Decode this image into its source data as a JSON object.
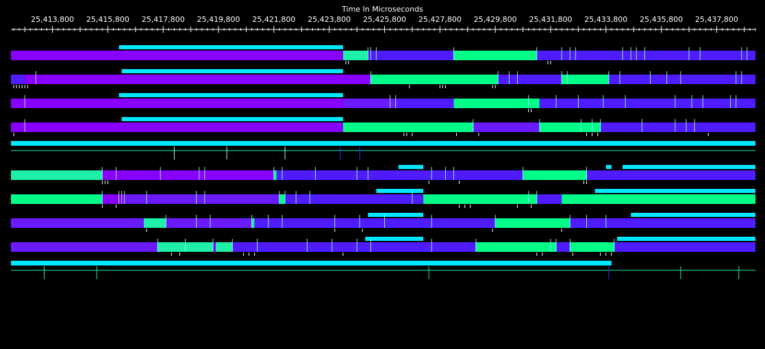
{
  "title": "Time In Microseconds",
  "axis": {
    "start": 25412300,
    "end": 25439200,
    "labels": [
      "25,413,800",
      "25,415,800",
      "25,417,800",
      "25,419,800",
      "25,421,800",
      "25,423,800",
      "25,425,800",
      "25,427,800",
      "25,429,800",
      "25,431,800",
      "25,433,800",
      "25,435,800",
      "25,437,800"
    ],
    "label_values": [
      25413800,
      25415800,
      25417800,
      25419800,
      25421800,
      25423800,
      25425800,
      25427800,
      25429800,
      25431800,
      25433800,
      25435800,
      25437800
    ]
  },
  "colors": {
    "background": "#000000",
    "purple": "#8800ff",
    "violet": "#6a1aff",
    "indigo": "#4f1cff",
    "teal": "#1ef0a8",
    "green": "#00ff88",
    "cyan": "#00e8ff",
    "idle_line": "#1ef0a8",
    "marker_light": "#9ffff0",
    "marker_white": "#ffffff"
  },
  "processors": [
    {
      "type": "bar",
      "segments": [
        {
          "start": 25412300,
          "end": 25424300,
          "color": "purple"
        },
        {
          "start": 25424300,
          "end": 25425200,
          "color": "teal"
        },
        {
          "start": 25425200,
          "end": 25428300,
          "color": "indigo"
        },
        {
          "start": 25428300,
          "end": 25431300,
          "color": "green"
        },
        {
          "start": 25431300,
          "end": 25434400,
          "color": "indigo"
        },
        {
          "start": 25434400,
          "end": 25439200,
          "color": "indigo"
        }
      ],
      "overhead": [
        {
          "start": 25416200,
          "end": 25424300
        }
      ],
      "events": [
        25425200,
        25425300,
        25425500,
        25428300,
        25431300,
        25432200,
        25432500,
        25432700,
        25434400,
        25434700,
        25434900,
        25435200,
        25436800,
        25437200,
        25438700,
        25438900
      ],
      "marks": [
        25424400,
        25424500,
        25431700,
        25431800
      ]
    },
    {
      "type": "bar",
      "segments": [
        {
          "start": 25412300,
          "end": 25412800,
          "color": "indigo"
        },
        {
          "start": 25412800,
          "end": 25425300,
          "color": "purple"
        },
        {
          "start": 25425300,
          "end": 25429900,
          "color": "green"
        },
        {
          "start": 25429900,
          "end": 25432200,
          "color": "indigo"
        },
        {
          "start": 25432200,
          "end": 25433900,
          "color": "green"
        },
        {
          "start": 25433900,
          "end": 25439200,
          "color": "indigo"
        }
      ],
      "overhead": [
        {
          "start": 25416300,
          "end": 25424300
        }
      ],
      "events": [
        25413200,
        25425300,
        25429900,
        25430300,
        25430600,
        25432200,
        25432400,
        25433900,
        25434300,
        25435400,
        25436000,
        25436500,
        25438500,
        25438700
      ],
      "marks": [
        25412400,
        25412500,
        25412600,
        25412700,
        25412800,
        25412900,
        25426700,
        25427800,
        25427900,
        25428000,
        25429700,
        25429800
      ]
    },
    {
      "type": "bar",
      "segments": [
        {
          "start": 25412300,
          "end": 25424300,
          "color": "purple"
        },
        {
          "start": 25424300,
          "end": 25426300,
          "color": "violet"
        },
        {
          "start": 25426300,
          "end": 25428300,
          "color": "indigo"
        },
        {
          "start": 25428300,
          "end": 25431400,
          "color": "green"
        },
        {
          "start": 25431400,
          "end": 25434500,
          "color": "indigo"
        },
        {
          "start": 25434500,
          "end": 25439200,
          "color": "indigo"
        }
      ],
      "overhead": [
        {
          "start": 25416200,
          "end": 25424300
        }
      ],
      "events": [
        25412800,
        25426000,
        25426200,
        25431000,
        25432000,
        25432800,
        25433700,
        25434500,
        25436300,
        25436900,
        25437300,
        25438300,
        25438500
      ],
      "marks": [
        25431000,
        25431100
      ]
    },
    {
      "type": "bar",
      "segments": [
        {
          "start": 25412300,
          "end": 25424300,
          "color": "purple"
        },
        {
          "start": 25424300,
          "end": 25429000,
          "color": "green"
        },
        {
          "start": 25429000,
          "end": 25431400,
          "color": "violet"
        },
        {
          "start": 25431400,
          "end": 25433600,
          "color": "green"
        },
        {
          "start": 25433600,
          "end": 25439200,
          "color": "indigo"
        }
      ],
      "overhead": [
        {
          "start": 25416300,
          "end": 25424300
        }
      ],
      "events": [
        25412800,
        25429000,
        25431400,
        25432900,
        25433300,
        25433600,
        25435100,
        25436300,
        25436700,
        25437000
      ],
      "marks": [
        25412400,
        25426500,
        25426600,
        25426800,
        25428400,
        25429200,
        25433100,
        25433300,
        25433500,
        25437500
      ]
    },
    {
      "type": "idle",
      "band": {
        "start": 25412300,
        "end": 25439200
      },
      "markers": [
        {
          "t": 25418200,
          "color": "marker_light"
        },
        {
          "t": 25420100,
          "color": "marker_light"
        },
        {
          "t": 25422200,
          "color": "marker_light"
        },
        {
          "t": 25424200,
          "color": "indigo"
        },
        {
          "t": 25424900,
          "color": "indigo"
        }
      ]
    },
    {
      "type": "bar",
      "segments": [
        {
          "start": 25412300,
          "end": 25415600,
          "color": "teal"
        },
        {
          "start": 25415600,
          "end": 25421800,
          "color": "purple"
        },
        {
          "start": 25421800,
          "end": 25421900,
          "color": "green"
        },
        {
          "start": 25421900,
          "end": 25430800,
          "color": "indigo"
        },
        {
          "start": 25430800,
          "end": 25433100,
          "color": "green"
        },
        {
          "start": 25433100,
          "end": 25439200,
          "color": "indigo"
        }
      ],
      "overhead": [
        {
          "start": 25426300,
          "end": 25427200
        },
        {
          "start": 25433800,
          "end": 25434000
        },
        {
          "start": 25434400,
          "end": 25439200
        }
      ],
      "events": [
        25415600,
        25416100,
        25417700,
        25419100,
        25419300,
        25421800,
        25422100,
        25423300,
        25424800,
        25425200,
        25427500,
        25428000,
        25428300,
        25430800,
        25433100
      ],
      "marks": [
        25415600,
        25415700,
        25415800,
        25427400,
        25428500,
        25433000,
        25433100
      ]
    },
    {
      "type": "bar",
      "segments": [
        {
          "start": 25412300,
          "end": 25415600,
          "color": "green"
        },
        {
          "start": 25415600,
          "end": 25416400,
          "color": "purple"
        },
        {
          "start": 25416400,
          "end": 25422000,
          "color": "violet"
        },
        {
          "start": 25422000,
          "end": 25422200,
          "color": "green"
        },
        {
          "start": 25422200,
          "end": 25427200,
          "color": "indigo"
        },
        {
          "start": 25427200,
          "end": 25431300,
          "color": "green"
        },
        {
          "start": 25431300,
          "end": 25432200,
          "color": "indigo"
        },
        {
          "start": 25432200,
          "end": 25439200,
          "color": "green"
        }
      ],
      "overhead": [
        {
          "start": 25425500,
          "end": 25427200
        },
        {
          "start": 25433400,
          "end": 25439200
        }
      ],
      "events": [
        25415600,
        25416200,
        25416300,
        25416400,
        25417200,
        25419000,
        25419300,
        25422000,
        25422200,
        25422600,
        25423100,
        25426800,
        25431000,
        25431300
      ],
      "marks": [
        25415600,
        25416100,
        25428500,
        25428700,
        25428900,
        25430600,
        25431100
      ]
    },
    {
      "type": "bar",
      "segments": [
        {
          "start": 25412300,
          "end": 25417100,
          "color": "violet"
        },
        {
          "start": 25417100,
          "end": 25417900,
          "color": "teal"
        },
        {
          "start": 25417900,
          "end": 25421000,
          "color": "violet"
        },
        {
          "start": 25421000,
          "end": 25421100,
          "color": "teal"
        },
        {
          "start": 25421100,
          "end": 25429800,
          "color": "indigo"
        },
        {
          "start": 25429800,
          "end": 25432500,
          "color": "green"
        },
        {
          "start": 25432500,
          "end": 25439200,
          "color": "indigo"
        }
      ],
      "overhead": [
        {
          "start": 25425200,
          "end": 25427200
        },
        {
          "start": 25434700,
          "end": 25439200
        }
      ],
      "events": [
        25417900,
        25419000,
        25419500,
        25421000,
        25421600,
        25422100,
        25424000,
        25424900,
        25425800,
        25427500,
        25429800,
        25432500,
        25433100,
        25433800
      ],
      "marks": [
        25417200,
        25424000,
        25425000,
        25429700,
        25432200
      ]
    },
    {
      "type": "bar",
      "segments": [
        {
          "start": 25412300,
          "end": 25417600,
          "color": "violet"
        },
        {
          "start": 25417600,
          "end": 25419600,
          "color": "teal"
        },
        {
          "start": 25419600,
          "end": 25419700,
          "color": "purple"
        },
        {
          "start": 25419700,
          "end": 25420300,
          "color": "teal"
        },
        {
          "start": 25420300,
          "end": 25420400,
          "color": "violet"
        },
        {
          "start": 25420400,
          "end": 25429100,
          "color": "indigo"
        },
        {
          "start": 25429100,
          "end": 25432000,
          "color": "green"
        },
        {
          "start": 25432000,
          "end": 25432500,
          "color": "indigo"
        },
        {
          "start": 25432500,
          "end": 25434100,
          "color": "green"
        },
        {
          "start": 25434100,
          "end": 25439200,
          "color": "indigo"
        }
      ],
      "overhead": [
        {
          "start": 25425100,
          "end": 25427200
        },
        {
          "start": 25434200,
          "end": 25439200
        }
      ],
      "events": [
        25417600,
        25418600,
        25419600,
        25420300,
        25421200,
        25423000,
        25423900,
        25424800,
        25425300,
        25427500,
        25429100,
        25431800,
        25432000,
        25432500,
        25434100
      ],
      "marks": [
        25418100,
        25418400,
        25420700,
        25420900,
        25421100,
        25424300,
        25431300,
        25431500,
        25432600,
        25433600,
        25433800,
        25434000
      ]
    },
    {
      "type": "idle",
      "band": {
        "start": 25412300,
        "end": 25434000
      },
      "markers": [
        {
          "t": 25413500,
          "color": "idle_line"
        },
        {
          "t": 25415400,
          "color": "idle_line"
        },
        {
          "t": 25427400,
          "color": "idle_line"
        },
        {
          "t": 25433900,
          "color": "indigo"
        },
        {
          "t": 25436500,
          "color": "idle_line"
        },
        {
          "t": 25438600,
          "color": "idle_line"
        }
      ]
    }
  ]
}
